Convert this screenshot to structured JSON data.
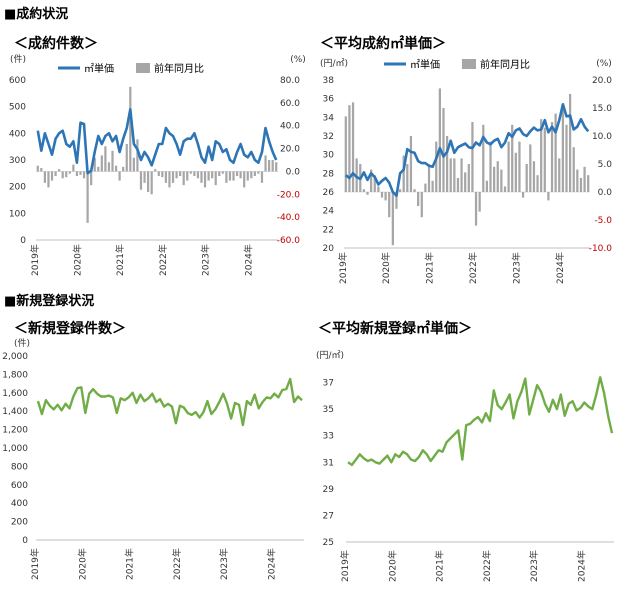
{
  "sections": {
    "contracts": "■成約状況",
    "registrations": "■新規登録状況"
  },
  "chart_data": [
    {
      "id": "c1",
      "type": "bar+line",
      "title": "＜成約件数＞",
      "ylabel_left": "(件)",
      "ylabel_right": "(%)",
      "ylim_left": [
        0,
        600
      ],
      "ylim_right": [
        -60,
        80
      ],
      "yticks_left": [
        "0",
        "100",
        "200",
        "300",
        "400",
        "500",
        "600"
      ],
      "yticks_right": [
        "-60.0",
        "-40.0",
        "-20.0",
        "0.0",
        "20.0",
        "40.0",
        "60.0",
        "80.0"
      ],
      "x_labels": [
        "2019年",
        "2020年",
        "2021年",
        "2022年",
        "2023年",
        "2024年"
      ],
      "months": 68,
      "legend": [
        {
          "name": "㎡単価",
          "kind": "line",
          "color": "#2e75b6"
        },
        {
          "name": "前年同月比",
          "kind": "bar",
          "color": "#a6a6a6"
        }
      ],
      "line_values": [
        410,
        335,
        400,
        360,
        320,
        380,
        400,
        410,
        360,
        350,
        370,
        290,
        440,
        435,
        250,
        260,
        330,
        390,
        360,
        390,
        400,
        370,
        390,
        330,
        380,
        420,
        490,
        360,
        340,
        300,
        330,
        310,
        280,
        320,
        360,
        360,
        420,
        400,
        390,
        360,
        320,
        370,
        380,
        380,
        400,
        360,
        310,
        290,
        350,
        300,
        370,
        360,
        330,
        340,
        300,
        290,
        330,
        360,
        320,
        310,
        330,
        300,
        290,
        330,
        420,
        370,
        330,
        300
      ],
      "bar_values": [
        5,
        3,
        -10,
        -14,
        -8,
        -4,
        2,
        -6,
        -5,
        -2,
        6,
        -4,
        -3,
        -6,
        -45,
        -12,
        12,
        4,
        14,
        22,
        8,
        18,
        5,
        -8,
        4,
        24,
        74,
        12,
        28,
        -16,
        -10,
        -18,
        -20,
        2,
        -4,
        -5,
        -10,
        -14,
        -10,
        -6,
        -4,
        -12,
        -8,
        -2,
        -4,
        -6,
        -10,
        -14,
        -8,
        -6,
        -12,
        -4,
        -2,
        -10,
        -8,
        -8,
        -4,
        -6,
        -14,
        -8,
        -6,
        -4,
        -2,
        -10,
        14,
        10,
        10,
        8
      ]
    },
    {
      "id": "c2",
      "type": "bar+line",
      "title": "＜平均成約㎡単価＞",
      "ylabel_left": "(円/㎡)",
      "ylabel_right": "(%)",
      "ylim_left": [
        20,
        38
      ],
      "ylim_right": [
        -10,
        20
      ],
      "yticks_left": [
        "20",
        "22",
        "24",
        "26",
        "28",
        "30",
        "32",
        "34",
        "36",
        "38"
      ],
      "yticks_right": [
        "-10.0",
        "-5.0",
        "0.0",
        "5.0",
        "10.0",
        "15.0",
        "20.0"
      ],
      "x_labels": [
        "2019年",
        "2020年",
        "2021年",
        "2022年",
        "2023年",
        "2024年"
      ],
      "months": 68,
      "legend": [
        {
          "name": "㎡単価",
          "kind": "line",
          "color": "#2e75b6"
        },
        {
          "name": "前年同月比",
          "kind": "bar",
          "color": "#a6a6a6"
        }
      ],
      "line_values": [
        27.8,
        27.5,
        28.0,
        27.6,
        27.4,
        28.1,
        27.3,
        28.0,
        27.6,
        26.8,
        27.2,
        27.5,
        27.0,
        26.0,
        25.6,
        28.0,
        28.4,
        30.6,
        30.3,
        30.2,
        29.3,
        29.1,
        29.1,
        28.8,
        28.7,
        29.6,
        30.7,
        29.8,
        30.3,
        31.5,
        30.2,
        30.8,
        31.0,
        31.2,
        30.8,
        30.7,
        31.3,
        31.0,
        31.9,
        31.3,
        31.1,
        31.5,
        31.7,
        30.8,
        31.3,
        32.3,
        31.9,
        32.6,
        32.8,
        32.2,
        32.0,
        32.5,
        32.9,
        32.6,
        32.7,
        33.7,
        32.4,
        33.0,
        32.4,
        33.7,
        35.4,
        34.1,
        34.2,
        32.7,
        33.0,
        33.8,
        33.0,
        32.5
      ],
      "bar_values": [
        13.5,
        15.5,
        16.0,
        6.0,
        5.0,
        0.5,
        -0.5,
        4.0,
        3.0,
        1.0,
        -1.0,
        -1.5,
        -4.5,
        -9.5,
        -3.0,
        0.5,
        6.5,
        5.0,
        10.0,
        0.5,
        -2.5,
        -4.5,
        1.5,
        5.0,
        2.0,
        9.0,
        18.5,
        15.0,
        10.0,
        6.0,
        6.0,
        2.5,
        6.0,
        3.5,
        5.0,
        12.5,
        -6.0,
        -3.5,
        12.0,
        2.0,
        9.0,
        4.5,
        5.5,
        4.0,
        1.0,
        9.0,
        12.0,
        7.0,
        9.0,
        -1.0,
        5.0,
        8.5,
        5.5,
        3.0,
        13.0,
        11.5,
        -1.5,
        12.5,
        14.0,
        6.0,
        15.0,
        12.0,
        17.5,
        8.0,
        4.0,
        2.5,
        4.5,
        3.0
      ]
    },
    {
      "id": "c3",
      "type": "line",
      "title": "＜新規登録件数＞",
      "ylabel_left": "(件)",
      "ylim_left": [
        0,
        2000
      ],
      "yticks_left": [
        "0",
        "200",
        "400",
        "600",
        "800",
        "1,000",
        "1,200",
        "1,400",
        "1,600",
        "1,800",
        "2,000"
      ],
      "x_labels": [
        "2019年",
        "2020年",
        "2021年",
        "2022年",
        "2023年",
        "2024年"
      ],
      "months": 68,
      "series": [
        {
          "color": "#70ad47",
          "values": [
            1510,
            1370,
            1520,
            1460,
            1420,
            1470,
            1410,
            1480,
            1430,
            1560,
            1650,
            1660,
            1380,
            1590,
            1640,
            1590,
            1560,
            1560,
            1570,
            1550,
            1380,
            1540,
            1520,
            1550,
            1600,
            1490,
            1580,
            1510,
            1540,
            1590,
            1500,
            1530,
            1450,
            1480,
            1450,
            1270,
            1460,
            1440,
            1380,
            1360,
            1390,
            1330,
            1390,
            1510,
            1370,
            1420,
            1500,
            1590,
            1480,
            1320,
            1490,
            1470,
            1250,
            1510,
            1470,
            1580,
            1430,
            1500,
            1550,
            1540,
            1590,
            1550,
            1630,
            1640,
            1750,
            1500,
            1560,
            1520
          ]
        }
      ]
    },
    {
      "id": "c4",
      "type": "line",
      "title": "＜平均新規登録㎡単価＞",
      "ylabel_left": "(円/㎡)",
      "ylim_left": [
        25,
        39
      ],
      "yticks_left": [
        "25",
        "27",
        "29",
        "31",
        "33",
        "35",
        "37"
      ],
      "x_labels": [
        "2019年",
        "2020年",
        "2021年",
        "2022年",
        "2023年",
        "2024年"
      ],
      "months": 68,
      "series": [
        {
          "color": "#70ad47",
          "values": [
            31.0,
            30.8,
            31.2,
            31.6,
            31.3,
            31.1,
            31.2,
            31.0,
            30.9,
            31.2,
            31.5,
            31.0,
            31.6,
            31.4,
            31.8,
            31.6,
            31.2,
            31.1,
            31.4,
            31.9,
            31.6,
            31.1,
            31.5,
            31.9,
            31.8,
            32.5,
            32.8,
            33.1,
            33.4,
            31.2,
            33.8,
            33.9,
            34.2,
            34.4,
            34.0,
            34.7,
            34.1,
            36.4,
            35.3,
            35.0,
            35.5,
            36.1,
            34.3,
            35.6,
            36.3,
            37.3,
            34.6,
            35.7,
            36.8,
            36.3,
            35.4,
            34.8,
            35.7,
            35.0,
            36.1,
            34.5,
            35.4,
            35.6,
            34.9,
            35.1,
            35.5,
            35.2,
            35.0,
            36.1,
            37.4,
            36.2,
            34.5,
            33.2
          ]
        }
      ]
    }
  ]
}
